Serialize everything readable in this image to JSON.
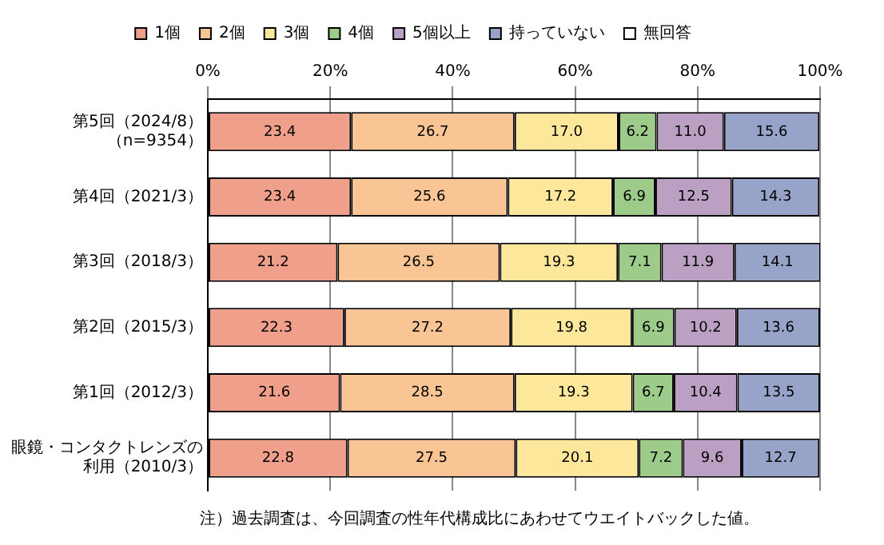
{
  "chart_data": {
    "type": "bar",
    "orientation": "horizontal",
    "stacked": true,
    "categories": [
      "第5回（2024/8）（n=9354）",
      "第4回（2021/3）",
      "第3回（2018/3）",
      "第2回（2015/3）",
      "第1回（2012/3）",
      "眼鏡・コンタクトレンズの利用（2010/3）"
    ],
    "series": [
      {
        "name": "1個",
        "color": "#f0a08a",
        "values": [
          23.4,
          23.4,
          21.2,
          22.3,
          21.6,
          22.8
        ],
        "value_labels": [
          "23.4",
          "23.4",
          "21.2",
          "22.3",
          "21.6",
          "22.8"
        ]
      },
      {
        "name": "2個",
        "color": "#f9c595",
        "values": [
          26.7,
          25.6,
          26.5,
          27.2,
          28.5,
          27.5
        ],
        "value_labels": [
          "26.7",
          "25.6",
          "26.5",
          "27.2",
          "28.5",
          "27.5"
        ]
      },
      {
        "name": "3個",
        "color": "#fde79a",
        "values": [
          17.0,
          17.2,
          19.3,
          19.8,
          19.3,
          20.1
        ],
        "value_labels": [
          "17.0",
          "17.2",
          "19.3",
          "19.8",
          "19.3",
          "20.1"
        ]
      },
      {
        "name": "4個",
        "color": "#9dcb8a",
        "values": [
          6.2,
          6.9,
          7.1,
          6.9,
          6.7,
          7.2
        ],
        "value_labels": [
          "6.2",
          "6.9",
          "7.1",
          "6.9",
          "6.7",
          "7.2"
        ]
      },
      {
        "name": "5個以上",
        "color": "#bca0c3",
        "values": [
          11.0,
          12.5,
          11.9,
          10.2,
          10.4,
          9.6
        ],
        "value_labels": [
          "11.0",
          "12.5",
          "11.9",
          "10.2",
          "10.4",
          "9.6"
        ]
      },
      {
        "name": "持っていない",
        "color": "#97a3c8",
        "values": [
          15.6,
          14.3,
          14.1,
          13.6,
          13.5,
          12.7
        ],
        "value_labels": [
          "15.6",
          "14.3",
          "14.1",
          "13.6",
          "13.5",
          "12.7"
        ]
      },
      {
        "name": "無回答",
        "color": "#ffffff",
        "values": [
          null,
          null,
          null,
          null,
          null,
          null
        ]
      }
    ],
    "xlim": [
      0,
      100
    ],
    "xticks": [
      {
        "value": 0,
        "label": "0%"
      },
      {
        "value": 20,
        "label": "20%"
      },
      {
        "value": 40,
        "label": "40%"
      },
      {
        "value": 60,
        "label": "60%"
      },
      {
        "value": 80,
        "label": "80%"
      },
      {
        "value": 100,
        "label": "100%"
      }
    ],
    "grid": "x",
    "legend": "top",
    "annotations": [
      "注）過去調査は、今回調査の性年代構成比にあわせてウエイトバックした値。"
    ]
  }
}
